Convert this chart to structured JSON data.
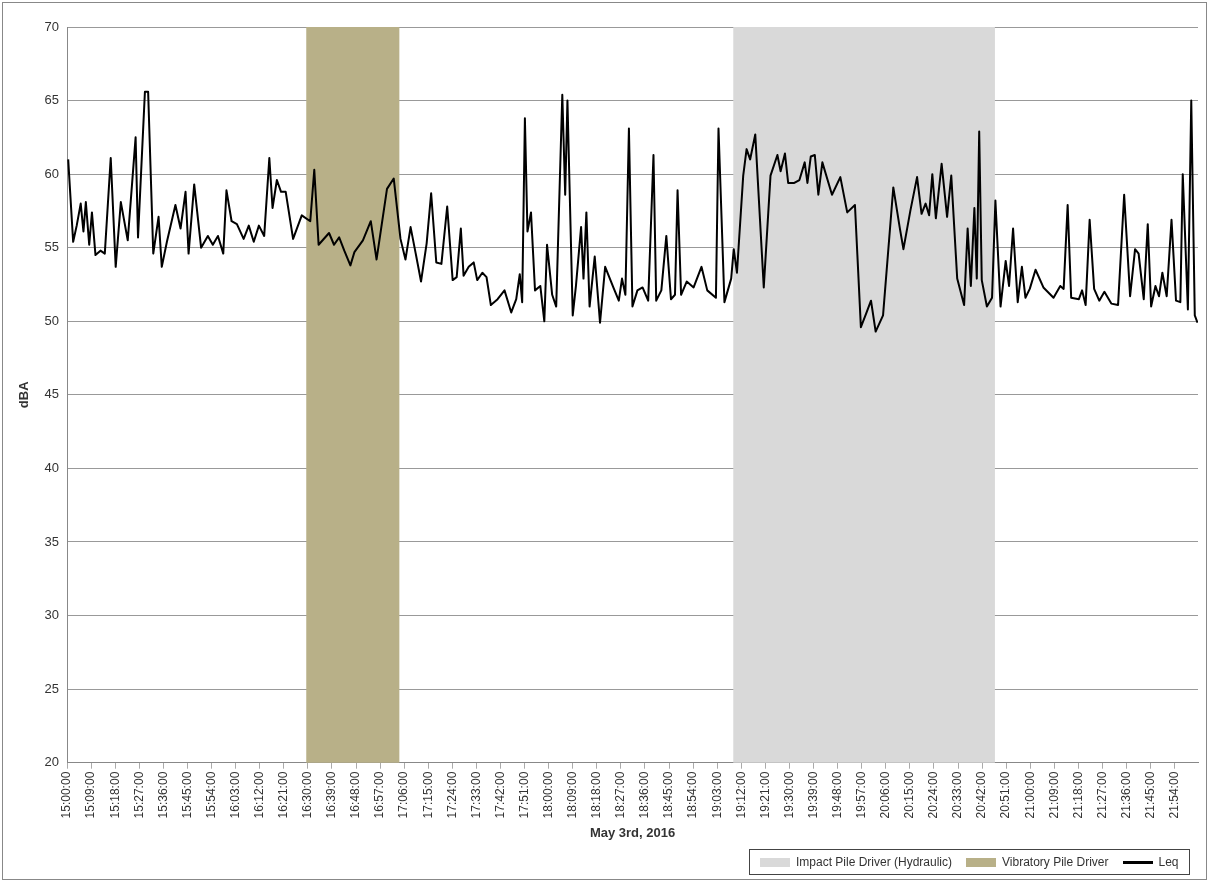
{
  "chart_data": {
    "type": "line",
    "xlabel": "May 3rd, 2016",
    "ylabel": "dBA",
    "xlim": [
      15,
      22.045
    ],
    "xticks": [
      {
        "value": 15,
        "label": "15:00:00"
      },
      {
        "value": 15.15,
        "label": "15:09:00"
      },
      {
        "value": 15.3,
        "label": "15:18:00"
      },
      {
        "value": 15.45,
        "label": "15:27:00"
      },
      {
        "value": 15.6,
        "label": "15:36:00"
      },
      {
        "value": 15.75,
        "label": "15:45:00"
      },
      {
        "value": 15.9,
        "label": "15:54:00"
      },
      {
        "value": 16.05,
        "label": "16:03:00"
      },
      {
        "value": 16.2,
        "label": "16:12:00"
      },
      {
        "value": 16.35,
        "label": "16:21:00"
      },
      {
        "value": 16.5,
        "label": "16:30:00"
      },
      {
        "value": 16.65,
        "label": "16:39:00"
      },
      {
        "value": 16.8,
        "label": "16:48:00"
      },
      {
        "value": 16.95,
        "label": "16:57:00"
      },
      {
        "value": 17.1,
        "label": "17:06:00"
      },
      {
        "value": 17.25,
        "label": "17:15:00"
      },
      {
        "value": 17.4,
        "label": "17:24:00"
      },
      {
        "value": 17.55,
        "label": "17:33:00"
      },
      {
        "value": 17.7,
        "label": "17:42:00"
      },
      {
        "value": 17.85,
        "label": "17:51:00"
      },
      {
        "value": 18,
        "label": "18:00:00"
      },
      {
        "value": 18.15,
        "label": "18:09:00"
      },
      {
        "value": 18.3,
        "label": "18:18:00"
      },
      {
        "value": 18.45,
        "label": "18:27:00"
      },
      {
        "value": 18.6,
        "label": "18:36:00"
      },
      {
        "value": 18.75,
        "label": "18:45:00"
      },
      {
        "value": 18.9,
        "label": "18:54:00"
      },
      {
        "value": 19.05,
        "label": "19:03:00"
      },
      {
        "value": 19.2,
        "label": "19:12:00"
      },
      {
        "value": 19.35,
        "label": "19:21:00"
      },
      {
        "value": 19.5,
        "label": "19:30:00"
      },
      {
        "value": 19.65,
        "label": "19:39:00"
      },
      {
        "value": 19.8,
        "label": "19:48:00"
      },
      {
        "value": 19.95,
        "label": "19:57:00"
      },
      {
        "value": 20.1,
        "label": "20:06:00"
      },
      {
        "value": 20.25,
        "label": "20:15:00"
      },
      {
        "value": 20.4,
        "label": "20:24:00"
      },
      {
        "value": 20.55,
        "label": "20:33:00"
      },
      {
        "value": 20.7,
        "label": "20:42:00"
      },
      {
        "value": 20.85,
        "label": "20:51:00"
      },
      {
        "value": 21,
        "label": "21:00:00"
      },
      {
        "value": 21.15,
        "label": "21:09:00"
      },
      {
        "value": 21.3,
        "label": "21:18:00"
      },
      {
        "value": 21.45,
        "label": "21:27:00"
      },
      {
        "value": 21.6,
        "label": "21:36:00"
      },
      {
        "value": 21.75,
        "label": "21:45:00"
      },
      {
        "value": 21.9,
        "label": "21:54:00"
      }
    ],
    "ylim": [
      20,
      70
    ],
    "yticks": [
      20,
      25,
      30,
      35,
      40,
      45,
      50,
      55,
      60,
      65,
      70
    ],
    "grid": "y",
    "legend": "bottom right",
    "marker": "none",
    "line_style": "solid",
    "bands": [
      {
        "axis": "x",
        "from": 19.15,
        "to": 20.78,
        "label": "Impact Pile Driver (Hydraulic)",
        "color": "#d9d9d9"
      },
      {
        "axis": "x",
        "from": 16.49,
        "to": 17.07,
        "label": "Vibratory Pile Driver",
        "color": "#b8b088"
      }
    ],
    "x": [
      15.007,
      15.038,
      15.06,
      15.085,
      15.102,
      15.117,
      15.138,
      15.155,
      15.177,
      15.208,
      15.235,
      15.272,
      15.303,
      15.335,
      15.378,
      15.427,
      15.442,
      15.485,
      15.505,
      15.537,
      15.57,
      15.59,
      15.622,
      15.675,
      15.707,
      15.738,
      15.757,
      15.792,
      15.835,
      15.877,
      15.908,
      15.94,
      15.973,
      15.993,
      16.025,
      16.058,
      16.1,
      16.132,
      16.163,
      16.195,
      16.228,
      16.26,
      16.28,
      16.307,
      16.333,
      16.362,
      16.408,
      16.462,
      16.515,
      16.54,
      16.567,
      16.632,
      16.663,
      16.695,
      16.727,
      16.765,
      16.79,
      16.843,
      16.892,
      16.928,
      16.993,
      17.035,
      17.077,
      17.108,
      17.14,
      17.172,
      17.205,
      17.24,
      17.268,
      17.3,
      17.332,
      17.368,
      17.402,
      17.427,
      17.453,
      17.47,
      17.502,
      17.533,
      17.555,
      17.587,
      17.613,
      17.64,
      17.682,
      17.725,
      17.767,
      17.798,
      17.82,
      17.835,
      17.852,
      17.868,
      17.89,
      17.915,
      17.948,
      17.973,
      17.99,
      18.022,
      18.047,
      18.085,
      18.103,
      18.117,
      18.15,
      18.17,
      18.202,
      18.217,
      18.235,
      18.255,
      18.287,
      18.32,
      18.352,
      18.403,
      18.437,
      18.457,
      18.478,
      18.5,
      18.522,
      18.553,
      18.585,
      18.62,
      18.653,
      18.67,
      18.702,
      18.733,
      18.762,
      18.787,
      18.803,
      18.825,
      18.86,
      18.903,
      18.952,
      18.988,
      19.042,
      19.058,
      19.095,
      19.137,
      19.153,
      19.173,
      19.212,
      19.233,
      19.255,
      19.287,
      19.34,
      19.382,
      19.425,
      19.445,
      19.472,
      19.492,
      19.53,
      19.562,
      19.595,
      19.612,
      19.633,
      19.658,
      19.68,
      19.705,
      19.765,
      19.817,
      19.86,
      19.908,
      19.945,
      19.977,
      20.008,
      20.037,
      20.083,
      20.147,
      20.188,
      20.21,
      20.253,
      20.295,
      20.323,
      20.348,
      20.37,
      20.39,
      20.412,
      20.448,
      20.482,
      20.508,
      20.545,
      20.588,
      20.61,
      20.63,
      20.652,
      20.667,
      20.682,
      20.698,
      20.73,
      20.762,
      20.783,
      20.815,
      20.847,
      20.868,
      20.893,
      20.922,
      20.948,
      20.97,
      20.997,
      21.033,
      21.082,
      21.145,
      21.187,
      21.208,
      21.233,
      21.255,
      21.303,
      21.323,
      21.345,
      21.37,
      21.398,
      21.43,
      21.462,
      21.505,
      21.547,
      21.585,
      21.622,
      21.653,
      21.675,
      21.707,
      21.732,
      21.753,
      21.78,
      21.802,
      21.823,
      21.85,
      21.88,
      21.908,
      21.935,
      21.95,
      21.982,
      22.003,
      22.025,
      22.042
    ],
    "series": [
      {
        "name": "Leq",
        "color": "#000000",
        "values": [
          61.0,
          55.4,
          56.5,
          58.0,
          56.1,
          58.1,
          55.2,
          57.4,
          54.5,
          54.8,
          54.6,
          61.1,
          53.7,
          58.1,
          55.5,
          62.5,
          55.7,
          65.6,
          65.6,
          54.6,
          57.1,
          53.7,
          55.4,
          57.9,
          56.3,
          58.8,
          54.6,
          59.3,
          55.0,
          55.8,
          55.2,
          55.8,
          54.6,
          58.9,
          56.8,
          56.6,
          55.6,
          56.5,
          55.4,
          56.5,
          55.8,
          61.1,
          57.7,
          59.6,
          58.8,
          58.8,
          55.6,
          57.2,
          56.8,
          60.3,
          55.2,
          56.0,
          55.2,
          55.7,
          54.8,
          53.8,
          54.7,
          55.5,
          56.8,
          54.2,
          59.0,
          59.7,
          55.6,
          54.2,
          56.4,
          54.6,
          52.7,
          55.3,
          58.7,
          54.0,
          53.9,
          57.8,
          52.8,
          53.0,
          56.3,
          53.1,
          53.7,
          54.0,
          52.8,
          53.3,
          53.0,
          51.1,
          51.5,
          52.1,
          50.6,
          51.5,
          53.2,
          51.3,
          63.8,
          56.1,
          57.4,
          52.1,
          52.4,
          50.0,
          55.2,
          51.8,
          51.0,
          65.4,
          58.6,
          65.0,
          50.4,
          52.4,
          56.4,
          52.9,
          57.4,
          51.0,
          54.4,
          49.9,
          53.7,
          52.3,
          51.4,
          52.9,
          51.8,
          63.1,
          51.0,
          52.1,
          52.3,
          51.4,
          61.3,
          51.4,
          52.1,
          55.8,
          51.5,
          51.8,
          58.9,
          51.8,
          52.7,
          52.3,
          53.7,
          52.1,
          51.6,
          63.1,
          51.3,
          52.9,
          54.9,
          53.3,
          59.9,
          61.7,
          61.0,
          62.7,
          52.3,
          59.9,
          61.3,
          60.2,
          61.4,
          59.4,
          59.4,
          59.6,
          60.8,
          59.4,
          61.2,
          61.3,
          58.6,
          60.8,
          58.6,
          59.8,
          57.4,
          57.9,
          49.6,
          50.5,
          51.4,
          49.3,
          50.4,
          59.1,
          56.3,
          54.9,
          57.5,
          59.8,
          57.3,
          58.0,
          57.2,
          60.0,
          57.0,
          60.7,
          57.1,
          59.9,
          52.9,
          51.1,
          56.3,
          52.4,
          57.7,
          52.9,
          62.9,
          52.8,
          51.0,
          51.6,
          58.2,
          51.0,
          54.1,
          52.4,
          56.3,
          51.3,
          53.7,
          51.6,
          52.2,
          53.5,
          52.3,
          51.6,
          52.4,
          52.2,
          57.9,
          51.6,
          51.5,
          52.1,
          51.1,
          56.9,
          52.2,
          51.4,
          52.0,
          51.2,
          51.1,
          58.6,
          51.7,
          54.9,
          54.6,
          51.5,
          56.6,
          51.0,
          52.4,
          51.7,
          53.3,
          51.7,
          56.9,
          51.4,
          51.3,
          60.0,
          50.8,
          65.0,
          50.4,
          49.9
        ]
      }
    ]
  }
}
